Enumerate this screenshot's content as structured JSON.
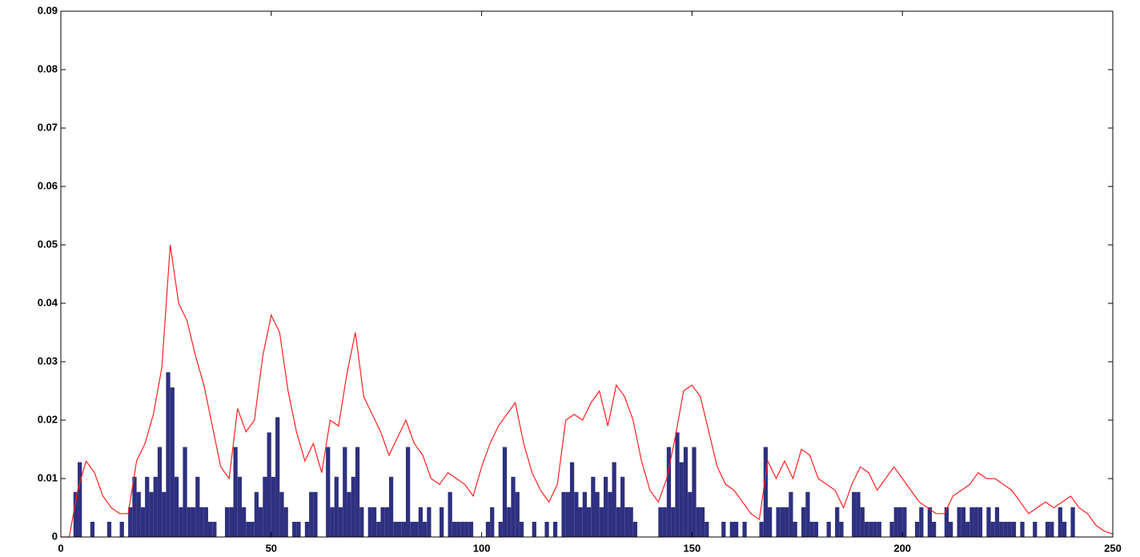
{
  "chart_data": {
    "type": "histogram",
    "color": "#2e3080",
    "bins": [
      0,
      1,
      2,
      3,
      4,
      5,
      6,
      7,
      8,
      9,
      10,
      11,
      12,
      13,
      14,
      15,
      16,
      17,
      18,
      19,
      20,
      21,
      22,
      23,
      24,
      25,
      26,
      27,
      28,
      29,
      30,
      31,
      32,
      33,
      34,
      35,
      36,
      37,
      38,
      39,
      40,
      41,
      42,
      43,
      44,
      45,
      46,
      47,
      48,
      49,
      50,
      51,
      52,
      53,
      54,
      55,
      56,
      57,
      58,
      59,
      60,
      61,
      62,
      63,
      64,
      65,
      66,
      67,
      68,
      69,
      70,
      71,
      72,
      73,
      74,
      75,
      76,
      77,
      78,
      79,
      80,
      81,
      82,
      83,
      84,
      85,
      86,
      87,
      88,
      89,
      90,
      91,
      92,
      93,
      94,
      95,
      96,
      97,
      98,
      99,
      100,
      101,
      102,
      103,
      104,
      105,
      106,
      107,
      108,
      109,
      110,
      111,
      112,
      113,
      114,
      115,
      116,
      117,
      118,
      119,
      120,
      121,
      122,
      123,
      124,
      125,
      126,
      127,
      128,
      129,
      130,
      131,
      132,
      133,
      134,
      135,
      136,
      137,
      138,
      139,
      140,
      141,
      142,
      143,
      144,
      145,
      146,
      147,
      148,
      149,
      150,
      151,
      152,
      153,
      154,
      155,
      156,
      157,
      158,
      159,
      160,
      161,
      162,
      163,
      164,
      165,
      166,
      167,
      168,
      169,
      170,
      171,
      172,
      173,
      174,
      175,
      176,
      177,
      178,
      179,
      180,
      181,
      182,
      183,
      184,
      185,
      186,
      187,
      188,
      189,
      190,
      191,
      192,
      193,
      194,
      195,
      196,
      197,
      198,
      199,
      200,
      201,
      202,
      203,
      204,
      205,
      206,
      207,
      208,
      209,
      210,
      211,
      212,
      213,
      214,
      215,
      216,
      217,
      218,
      219,
      220,
      221,
      222,
      223,
      224,
      225,
      226,
      227,
      228,
      229,
      230,
      231,
      232,
      233,
      234,
      235,
      236,
      237,
      238,
      239,
      240,
      241,
      242,
      243,
      244,
      245,
      246,
      247,
      248,
      249,
      250
    ],
    "values": [
      0,
      0,
      0,
      0.0077,
      0.0128,
      0,
      0,
      0.0026,
      0,
      0,
      0,
      0.0026,
      0,
      0,
      0.0026,
      0,
      0.0051,
      0.0103,
      0.0077,
      0.0051,
      0.0103,
      0.0077,
      0.0103,
      0.0154,
      0.0077,
      0.0282,
      0.0256,
      0.0103,
      0.0051,
      0.0154,
      0.0051,
      0.0051,
      0.0103,
      0.0051,
      0.0051,
      0.0026,
      0.0026,
      0,
      0,
      0.0051,
      0.0051,
      0.0154,
      0.0103,
      0.0051,
      0.0026,
      0.0026,
      0.0077,
      0.0051,
      0.0103,
      0.0179,
      0.0103,
      0.0205,
      0.0077,
      0.0051,
      0,
      0.0026,
      0.0026,
      0,
      0.0026,
      0.0077,
      0.0077,
      0,
      0,
      0.0154,
      0.0051,
      0.0103,
      0.0051,
      0.0154,
      0.0077,
      0.0103,
      0.0154,
      0.0051,
      0,
      0.0051,
      0.0051,
      0.0026,
      0.0051,
      0.0051,
      0.0103,
      0.0026,
      0.0026,
      0.0026,
      0.0154,
      0.0026,
      0.0026,
      0.0051,
      0.0026,
      0.0051,
      0,
      0,
      0.0051,
      0,
      0.0077,
      0.0026,
      0.0026,
      0.0026,
      0.0026,
      0.0026,
      0,
      0,
      0,
      0.0026,
      0.0051,
      0,
      0.0026,
      0.0154,
      0.0051,
      0.0103,
      0.0077,
      0.0026,
      0,
      0,
      0.0026,
      0,
      0,
      0.0026,
      0,
      0.0026,
      0,
      0.0077,
      0.0077,
      0.0128,
      0.0077,
      0.0051,
      0.0077,
      0.0051,
      0.0103,
      0.0077,
      0.0051,
      0.0103,
      0.0077,
      0.0128,
      0.0051,
      0.0103,
      0.0051,
      0.0051,
      0.0026,
      0,
      0,
      0,
      0,
      0,
      0.0051,
      0.0051,
      0.0154,
      0.0051,
      0.0179,
      0.0128,
      0.0154,
      0.0077,
      0.0154,
      0.0051,
      0.0051,
      0.0026,
      0,
      0,
      0,
      0.0026,
      0,
      0.0026,
      0.0026,
      0,
      0.0026,
      0,
      0,
      0,
      0.0026,
      0.0154,
      0.0051,
      0,
      0.0051,
      0.0051,
      0.0051,
      0.0077,
      0.0026,
      0,
      0.0051,
      0.0077,
      0.0026,
      0.0026,
      0,
      0,
      0.0026,
      0,
      0.0051,
      0.0026,
      0,
      0,
      0.0077,
      0.0077,
      0.0051,
      0.0026,
      0.0026,
      0.0026,
      0.0026,
      0,
      0,
      0.0026,
      0.0051,
      0.0051,
      0.0051,
      0,
      0,
      0.0026,
      0.0051,
      0,
      0.0051,
      0.0026,
      0,
      0,
      0.0051,
      0.0026,
      0,
      0.0051,
      0.0051,
      0.0026,
      0.0051,
      0.0051,
      0.0051,
      0,
      0.0051,
      0.0026,
      0.0051,
      0.0026,
      0.0026,
      0.0026,
      0.0026,
      0,
      0.0026,
      0,
      0,
      0.0026,
      0,
      0,
      0.0026,
      0.0026,
      0,
      0.0051,
      0.0026,
      0,
      0.0051,
      0,
      0,
      0,
      0,
      0,
      0,
      0,
      0,
      0
    ],
    "overlay": {
      "type": "line",
      "color": "#ff2020",
      "x": [
        0,
        2,
        4,
        6,
        8,
        10,
        12,
        14,
        16,
        18,
        20,
        22,
        24,
        26,
        28,
        30,
        32,
        34,
        36,
        38,
        40,
        42,
        44,
        46,
        48,
        50,
        52,
        54,
        56,
        58,
        60,
        62,
        64,
        66,
        68,
        70,
        72,
        74,
        76,
        78,
        80,
        82,
        84,
        86,
        88,
        90,
        92,
        94,
        96,
        98,
        100,
        102,
        104,
        106,
        108,
        110,
        112,
        114,
        116,
        118,
        120,
        122,
        124,
        126,
        128,
        130,
        132,
        134,
        136,
        138,
        140,
        142,
        144,
        146,
        148,
        150,
        152,
        154,
        156,
        158,
        160,
        162,
        164,
        166,
        168,
        170,
        172,
        174,
        176,
        178,
        180,
        182,
        184,
        186,
        188,
        190,
        192,
        194,
        196,
        198,
        200,
        202,
        204,
        206,
        208,
        210,
        212,
        214,
        216,
        218,
        220,
        222,
        224,
        226,
        228,
        230,
        232,
        234,
        236,
        238,
        240,
        242,
        244,
        246,
        248,
        250
      ],
      "values": [
        0,
        0,
        0.008,
        0.013,
        0.011,
        0.007,
        0.005,
        0.004,
        0.004,
        0.013,
        0.016,
        0.021,
        0.029,
        0.05,
        0.04,
        0.037,
        0.031,
        0.026,
        0.019,
        0.012,
        0.01,
        0.022,
        0.018,
        0.02,
        0.031,
        0.038,
        0.035,
        0.025,
        0.018,
        0.013,
        0.016,
        0.011,
        0.02,
        0.019,
        0.028,
        0.035,
        0.024,
        0.021,
        0.018,
        0.014,
        0.017,
        0.02,
        0.016,
        0.014,
        0.01,
        0.009,
        0.011,
        0.01,
        0.009,
        0.007,
        0.012,
        0.016,
        0.019,
        0.021,
        0.023,
        0.016,
        0.011,
        0.008,
        0.006,
        0.009,
        0.02,
        0.021,
        0.02,
        0.023,
        0.025,
        0.019,
        0.026,
        0.024,
        0.02,
        0.013,
        0.008,
        0.006,
        0.01,
        0.017,
        0.025,
        0.026,
        0.024,
        0.018,
        0.012,
        0.009,
        0.008,
        0.006,
        0.004,
        0.003,
        0.013,
        0.01,
        0.013,
        0.01,
        0.015,
        0.014,
        0.01,
        0.009,
        0.008,
        0.005,
        0.009,
        0.012,
        0.011,
        0.008,
        0.01,
        0.012,
        0.01,
        0.008,
        0.006,
        0.005,
        0.004,
        0.004,
        0.007,
        0.008,
        0.009,
        0.011,
        0.01,
        0.01,
        0.009,
        0.008,
        0.006,
        0.004,
        0.005,
        0.006,
        0.005,
        0.006,
        0.007,
        0.005,
        0.004,
        0.002,
        0.001,
        0.0005
      ]
    },
    "xlim": [
      0,
      250
    ],
    "ylim": [
      0,
      0.09
    ],
    "xticks": [
      0,
      50,
      100,
      150,
      200,
      250
    ],
    "yticks": [
      0,
      0.01,
      0.02,
      0.03,
      0.04,
      0.05,
      0.06,
      0.07,
      0.08,
      0.09
    ]
  }
}
